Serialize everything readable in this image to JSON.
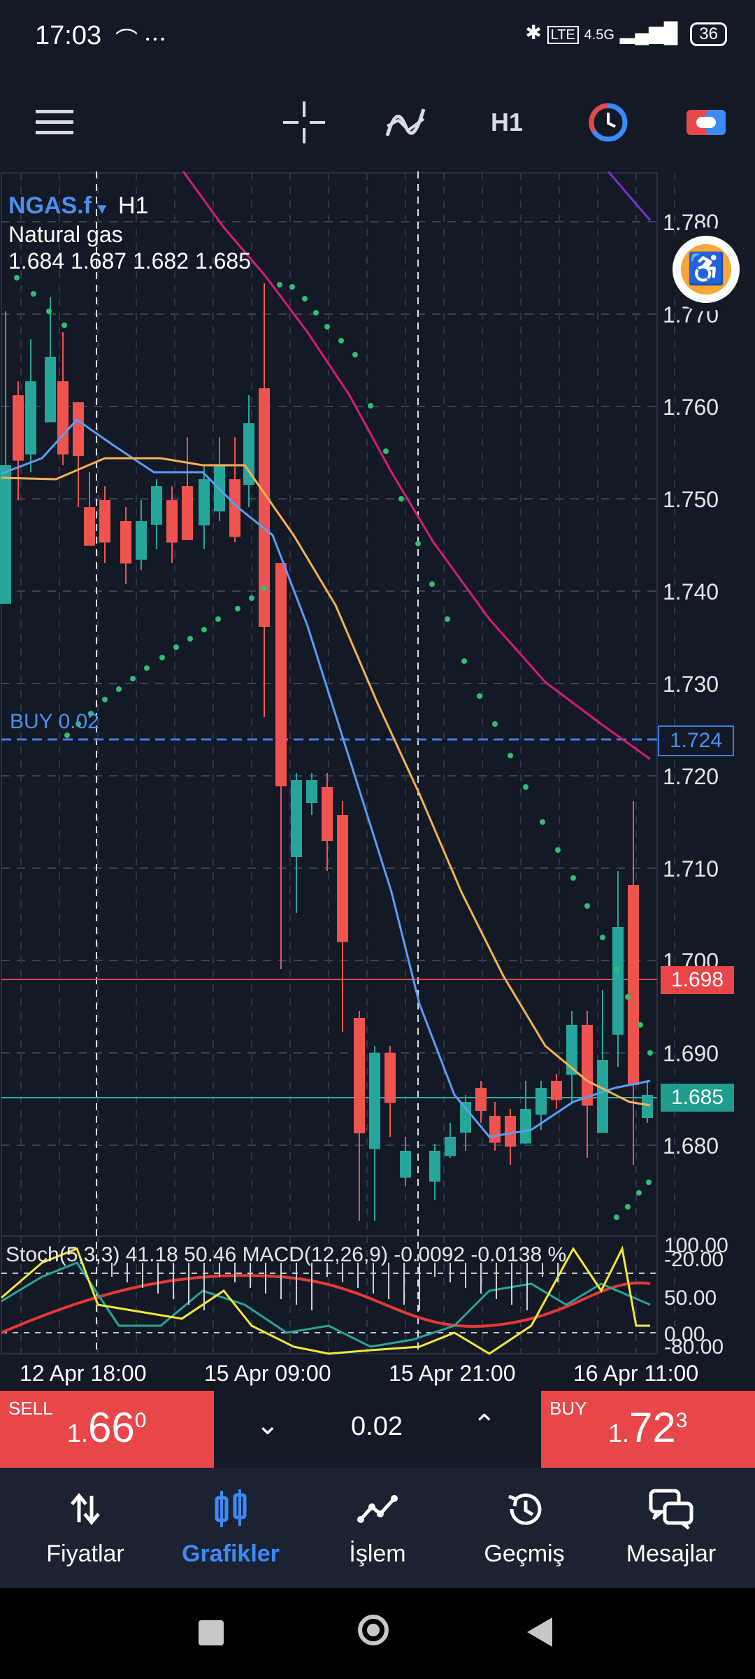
{
  "status_bar": {
    "time": "17:03",
    "signal": "4.5G",
    "battery": "36",
    "icons": [
      "bluetooth-icon",
      "volte-icon",
      "signal-icon",
      "battery-icon"
    ]
  },
  "toolbar": {
    "timeframe": "H1",
    "icons": [
      "menu-icon",
      "crosshair-icon",
      "indicators-icon",
      "clock-icon",
      "trade-toggle-icon"
    ]
  },
  "chart": {
    "symbol": "NGAS.f",
    "timeframe": "H1",
    "instrument_name": "Natural gas",
    "ohlc": "1.684 1.687 1.682 1.685",
    "price_axis": [
      "1.780",
      "1.770",
      "1.760",
      "1.750",
      "1.740",
      "1.730",
      "1.720",
      "1.710",
      "1.700",
      "1.690",
      "1.680"
    ],
    "buy_order_label": "BUY 0.02",
    "buy_order_price": "1.724",
    "ask_price_tag": "1.698",
    "bid_price_tag": "1.685",
    "indicator_label": "Stoch(5,3,3) 41.18 50.46 MACD(12,26,9) -0.0092 -0.0138 %",
    "indicator_axis": [
      "100.00",
      "-20.00",
      "50.00",
      "0.00",
      "-80.00"
    ],
    "dates": [
      "12 Apr 18:00",
      "15 Apr 09:00",
      "15 Apr 21:00",
      "16 Apr 11:00"
    ],
    "colors": {
      "bull": "#26a69a",
      "bear": "#ef5350",
      "ma_fast": "#5b9cf5",
      "ma_mid": "#f7b155",
      "ma_slow": "#d81b7a",
      "sar": "#2fbf71",
      "buy_line": "#3d7cf0"
    }
  },
  "trade": {
    "sell_label": "SELL",
    "sell_price_small": "1.",
    "sell_price_big": "66",
    "sell_price_sup": "0",
    "lot": "0.02",
    "buy_label": "BUY",
    "buy_price_small": "1.",
    "buy_price_big": "72",
    "buy_price_sup": "3"
  },
  "nav": {
    "items": [
      {
        "label": "Fiyatlar",
        "icon": "prices-icon"
      },
      {
        "label": "Grafikler",
        "icon": "charts-icon",
        "active": true
      },
      {
        "label": "İşlem",
        "icon": "trade-icon"
      },
      {
        "label": "Geçmiş",
        "icon": "history-icon"
      },
      {
        "label": "Mesajlar",
        "icon": "messages-icon"
      }
    ]
  }
}
